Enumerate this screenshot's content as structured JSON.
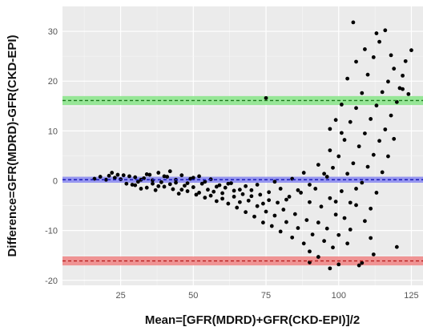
{
  "chart_data": {
    "type": "scatter",
    "title": "",
    "xlabel": "Mean=[GFR(MDRD)+GFR(CKD-EPI)]/2",
    "ylabel": "Difference=GFR(MDRD)-GFR(CKD-EPI)",
    "xlim": [
      5,
      129
    ],
    "ylim": [
      -21,
      35
    ],
    "x_ticks": [
      25,
      50,
      75,
      100,
      125
    ],
    "x_tick_labels": [
      "25",
      "50",
      "75",
      "100",
      "125"
    ],
    "y_ticks": [
      -20,
      -10,
      0,
      10,
      20,
      30
    ],
    "y_tick_labels": [
      "-20",
      "-10",
      "0",
      "10",
      "20",
      "30"
    ],
    "grid": true,
    "legend": "none",
    "reference_lines": [
      {
        "role": "upper limit of agreement",
        "y": 16.1,
        "band": [
          15.2,
          17.0
        ],
        "color": "#1c7a1c",
        "band_color": "#8ee58e"
      },
      {
        "role": "mean difference",
        "y": 0.2,
        "band": [
          -0.4,
          0.8
        ],
        "color": "#1c1cb8",
        "band_color": "#8c8cf0"
      },
      {
        "role": "lower limit of agreement",
        "y": -16.1,
        "band": [
          -17.0,
          -15.2
        ],
        "color": "#b82020",
        "band_color": "#f08a8a"
      }
    ],
    "series": [
      {
        "points": [
          [
            16,
            0.4
          ],
          [
            18,
            0.8
          ],
          [
            20,
            0.2
          ],
          [
            21,
            1.0
          ],
          [
            22,
            1.6
          ],
          [
            23,
            0.6
          ],
          [
            24,
            1.2
          ],
          [
            25,
            0.3
          ],
          [
            26,
            1.1
          ],
          [
            27,
            -0.6
          ],
          [
            28,
            0.9
          ],
          [
            29,
            -0.8
          ],
          [
            30,
            0.7
          ],
          [
            31,
            -0.2
          ],
          [
            32,
            -1.6
          ],
          [
            33,
            0.5
          ],
          [
            34,
            -1.4
          ],
          [
            35,
            1.2
          ],
          [
            36,
            -0.6
          ],
          [
            37,
            -1.9
          ],
          [
            38,
            1.6
          ],
          [
            39,
            -0.3
          ],
          [
            40,
            -1.2
          ],
          [
            41,
            0.8
          ],
          [
            42,
            1.9
          ],
          [
            43,
            -1.7
          ],
          [
            44,
            -0.4
          ],
          [
            45,
            -2.6
          ],
          [
            46,
            1.1
          ],
          [
            47,
            -1.0
          ],
          [
            48,
            -2.1
          ],
          [
            49,
            0.4
          ],
          [
            50,
            -1.3
          ],
          [
            51,
            -2.8
          ],
          [
            52,
            0.9
          ],
          [
            53,
            -0.6
          ],
          [
            54,
            -3.4
          ],
          [
            55,
            -1.8
          ],
          [
            56,
            0.3
          ],
          [
            57,
            -2.2
          ],
          [
            58,
            -4.1
          ],
          [
            59,
            -0.9
          ],
          [
            60,
            -2.5
          ],
          [
            61,
            -1.4
          ],
          [
            62,
            -4.6
          ],
          [
            63,
            -0.5
          ],
          [
            64,
            -3.2
          ],
          [
            65,
            -5.4
          ],
          [
            66,
            -1.8
          ],
          [
            67,
            -2.7
          ],
          [
            68,
            -6.3
          ],
          [
            69,
            -4.0
          ],
          [
            70,
            -1.9
          ],
          [
            71,
            -7.2
          ],
          [
            72,
            -5.1
          ],
          [
            73,
            -2.8
          ],
          [
            74,
            -8.4
          ],
          [
            75,
            -6.2
          ],
          [
            76,
            -3.9
          ],
          [
            77,
            -9.1
          ],
          [
            78,
            -7.0
          ],
          [
            79,
            -4.4
          ],
          [
            80,
            -10.2
          ],
          [
            81,
            -5.8
          ],
          [
            82,
            -8.3
          ],
          [
            83,
            -3.2
          ],
          [
            84,
            -11.4
          ],
          [
            85,
            -6.7
          ],
          [
            86,
            -9.5
          ],
          [
            87,
            -2.4
          ],
          [
            88,
            -12.6
          ],
          [
            89,
            -7.9
          ],
          [
            90,
            -4.3
          ],
          [
            90,
            -14.2
          ],
          [
            91,
            -10.8
          ],
          [
            92,
            -1.6
          ],
          [
            93,
            -8.4
          ],
          [
            93,
            -15.3
          ],
          [
            94,
            -5.2
          ],
          [
            95,
            -12.1
          ],
          [
            96,
            0.8
          ],
          [
            96,
            -9.6
          ],
          [
            97,
            -3.5
          ],
          [
            98,
            -13.4
          ],
          [
            98,
            2.6
          ],
          [
            99,
            -6.8
          ],
          [
            100,
            -10.9
          ],
          [
            100,
            4.9
          ],
          [
            101,
            -2.1
          ],
          [
            102,
            -7.5
          ],
          [
            102,
            8.2
          ],
          [
            103,
            1.4
          ],
          [
            104,
            -4.4
          ],
          [
            104,
            11.8
          ],
          [
            105,
            3.5
          ],
          [
            106,
            -1.6
          ],
          [
            106,
            14.6
          ],
          [
            107,
            6.9
          ],
          [
            108,
            -0.4
          ],
          [
            108,
            17.6
          ],
          [
            109,
            9.5
          ],
          [
            110,
            2.8
          ],
          [
            110,
            21.3
          ],
          [
            111,
            12.4
          ],
          [
            112,
            5.2
          ],
          [
            112,
            24.8
          ],
          [
            113,
            15.1
          ],
          [
            114,
            8.0
          ],
          [
            114,
            27.9
          ],
          [
            115,
            17.8
          ],
          [
            116,
            10.3
          ],
          [
            116,
            30.2
          ],
          [
            117,
            19.9
          ],
          [
            118,
            13.1
          ],
          [
            119,
            22.5
          ],
          [
            120,
            15.8
          ],
          [
            121,
            18.6
          ],
          [
            122,
            21.1
          ],
          [
            123,
            24.0
          ],
          [
            124,
            17.4
          ],
          [
            125,
            26.2
          ],
          [
            108,
            -16.5
          ],
          [
            112,
            -14.8
          ],
          [
            120,
            -13.3
          ],
          [
            104,
            -9.8
          ],
          [
            100,
            -16.8
          ],
          [
            97,
            -17.6
          ],
          [
            95,
            1.4
          ],
          [
            93,
            3.2
          ],
          [
            90,
            -0.8
          ],
          [
            88,
            1.6
          ],
          [
            86,
            -1.9
          ],
          [
            84,
            0.4
          ],
          [
            82,
            -3.8
          ],
          [
            80,
            -1.6
          ],
          [
            78,
            -0.2
          ],
          [
            76,
            -2.3
          ],
          [
            74,
            -4.6
          ],
          [
            72,
            -0.8
          ],
          [
            70,
            -3.1
          ],
          [
            68,
            -1.1
          ],
          [
            66,
            -4.3
          ],
          [
            64,
            -2.0
          ],
          [
            62,
            -0.6
          ],
          [
            60,
            -3.6
          ],
          [
            58,
            -1.2
          ],
          [
            56,
            -3.0
          ],
          [
            54,
            -0.2
          ],
          [
            52,
            -2.4
          ],
          [
            50,
            0.6
          ],
          [
            48,
            -0.5
          ],
          [
            46,
            -1.8
          ],
          [
            44,
            0.2
          ],
          [
            42,
            -0.7
          ],
          [
            40,
            0.9
          ],
          [
            38,
            -1.1
          ],
          [
            36,
            0.1
          ],
          [
            34,
            1.3
          ],
          [
            32,
            0.2
          ],
          [
            30,
            -0.9
          ],
          [
            75,
            16.6
          ],
          [
            90,
            -16.4
          ],
          [
            105,
            31.8
          ],
          [
            107,
            -17.0
          ],
          [
            111,
            -11.5
          ],
          [
            103,
            -12.6
          ],
          [
            99,
            -4.2
          ],
          [
            97,
            6.1
          ],
          [
            101,
            15.3
          ],
          [
            103,
            20.5
          ],
          [
            106,
            23.9
          ],
          [
            109,
            26.4
          ],
          [
            113,
            29.6
          ],
          [
            118,
            25.2
          ],
          [
            122,
            18.4
          ],
          [
            119,
            8.4
          ],
          [
            117,
            4.9
          ],
          [
            115,
            1.7
          ],
          [
            113,
            -2.4
          ],
          [
            111,
            -5.6
          ],
          [
            109,
            -8.1
          ],
          [
            106,
            -4.9
          ],
          [
            101,
            9.6
          ],
          [
            99,
            12.2
          ],
          [
            97,
            10.4
          ]
        ]
      }
    ]
  }
}
